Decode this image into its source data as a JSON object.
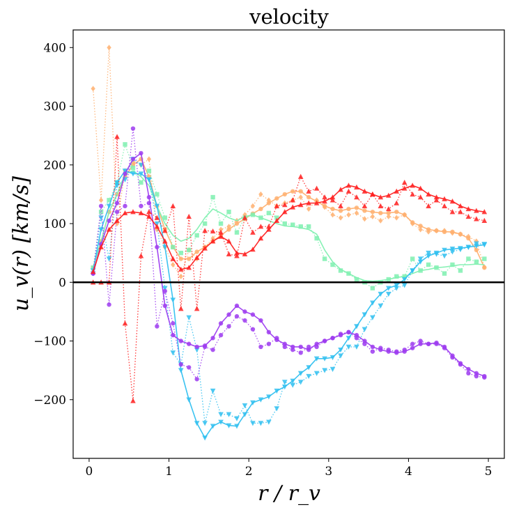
{
  "chart_data": {
    "type": "line",
    "title": "velocity",
    "xlabel": "r / r_v",
    "ylabel": "u_v(r) [km/s]",
    "xlim": [
      -0.2,
      5.2
    ],
    "ylim": [
      -300,
      430
    ],
    "xticks": [
      0,
      1,
      2,
      3,
      4,
      5
    ],
    "yticks": [
      -200,
      -100,
      0,
      100,
      200,
      300,
      400
    ],
    "xtick_labels": [
      "0",
      "1",
      "2",
      "3",
      "4",
      "5"
    ],
    "ytick_labels": [
      "−200",
      "−100",
      "0",
      "100",
      "200",
      "300",
      "400"
    ],
    "zero_line": 0,
    "grid": false,
    "series": [
      {
        "name": "orange solid",
        "color": "#ffb070",
        "marker": "circle",
        "linestyle": "solid",
        "x": [
          0.05,
          0.15,
          0.25,
          0.35,
          0.45,
          0.55,
          0.65,
          0.75,
          0.85,
          0.95,
          1.05,
          1.15,
          1.25,
          1.35,
          1.45,
          1.55,
          1.65,
          1.75,
          1.85,
          1.95,
          2.05,
          2.15,
          2.25,
          2.35,
          2.45,
          2.55,
          2.65,
          2.75,
          2.85,
          2.95,
          3.05,
          3.15,
          3.25,
          3.35,
          3.45,
          3.55,
          3.65,
          3.75,
          3.85,
          3.95,
          4.05,
          4.15,
          4.25,
          4.35,
          4.45,
          4.55,
          4.65,
          4.75,
          4.85,
          4.95
        ],
        "y": [
          25,
          70,
          120,
          150,
          180,
          200,
          210,
          180,
          130,
          90,
          60,
          40,
          40,
          52,
          60,
          70,
          80,
          90,
          100,
          108,
          117,
          125,
          135,
          143,
          150,
          155,
          155,
          145,
          138,
          130,
          125,
          122,
          125,
          127,
          122,
          120,
          118,
          118,
          120,
          115,
          102,
          96,
          90,
          88,
          86,
          86,
          82,
          75,
          55,
          25
        ]
      },
      {
        "name": "orange dotted",
        "color": "#ffb070",
        "marker": "diamond",
        "linestyle": "dotted",
        "x": [
          0.05,
          0.15,
          0.25,
          0.35,
          0.45,
          0.55,
          0.65,
          0.75,
          0.85,
          0.95,
          1.05,
          1.15,
          1.25,
          1.35,
          1.45,
          1.55,
          1.65,
          1.75,
          1.85,
          1.95,
          2.05,
          2.15,
          2.25,
          2.35,
          2.45,
          2.55,
          2.65,
          2.75,
          2.85,
          2.95,
          3.05,
          3.15,
          3.25,
          3.35,
          3.45,
          3.55,
          3.65,
          3.75,
          3.85,
          3.95,
          4.05,
          4.15,
          4.25,
          4.35,
          4.45,
          4.55,
          4.65,
          4.75,
          4.85,
          4.95
        ],
        "y": [
          330,
          140,
          400,
          100,
          190,
          205,
          200,
          210,
          90,
          60,
          30,
          10,
          55,
          40,
          60,
          75,
          90,
          95,
          105,
          115,
          130,
          150,
          140,
          130,
          135,
          140,
          145,
          125,
          140,
          128,
          115,
          110,
          115,
          118,
          108,
          112,
          105,
          112,
          110,
          115,
          100,
          90,
          86,
          88,
          88,
          84,
          82,
          78,
          70,
          26
        ]
      },
      {
        "name": "green dotted",
        "color": "#7ff0b0",
        "marker": "square",
        "linestyle": "dotted",
        "x": [
          0.05,
          0.15,
          0.25,
          0.35,
          0.45,
          0.55,
          0.65,
          0.75,
          0.85,
          0.95,
          1.05,
          1.15,
          1.25,
          1.35,
          1.45,
          1.55,
          1.65,
          1.75,
          1.85,
          1.95,
          2.05,
          2.15,
          2.25,
          2.35,
          2.45,
          2.55,
          2.65,
          2.75,
          2.85,
          2.95,
          3.05,
          3.15,
          3.25,
          3.35,
          3.45,
          3.55,
          3.65,
          3.75,
          3.85,
          3.95,
          4.05,
          4.15,
          4.25,
          4.35,
          4.45,
          4.55,
          4.65,
          4.75,
          4.85,
          4.95
        ],
        "y": [
          25,
          120,
          140,
          170,
          235,
          195,
          170,
          190,
          150,
          110,
          60,
          50,
          55,
          80,
          100,
          145,
          100,
          120,
          85,
          110,
          115,
          110,
          118,
          110,
          100,
          98,
          95,
          95,
          75,
          40,
          30,
          20,
          15,
          5,
          0,
          -10,
          0,
          5,
          10,
          10,
          40,
          20,
          30,
          25,
          15,
          30,
          20,
          40,
          35,
          40
        ]
      },
      {
        "name": "green solid",
        "color": "#7ff0b0",
        "marker": "none",
        "linestyle": "solid",
        "x": [
          0.05,
          0.15,
          0.25,
          0.35,
          0.45,
          0.55,
          0.65,
          0.75,
          0.85,
          0.95,
          1.05,
          1.15,
          1.25,
          1.35,
          1.45,
          1.55,
          1.65,
          1.75,
          1.85,
          1.95,
          2.05,
          2.15,
          2.25,
          2.35,
          2.45,
          2.55,
          2.65,
          2.75,
          2.85,
          2.95,
          3.05,
          3.15,
          3.25,
          3.35,
          3.45,
          3.55,
          3.65,
          3.75,
          3.85,
          3.95,
          4.05,
          4.15,
          4.25,
          4.35,
          4.45,
          4.55,
          4.65,
          4.75,
          4.85,
          4.95
        ],
        "y": [
          25,
          70,
          120,
          150,
          185,
          190,
          180,
          165,
          130,
          100,
          80,
          70,
          75,
          90,
          110,
          125,
          118,
          110,
          105,
          112,
          115,
          110,
          105,
          100,
          96,
          95,
          93,
          90,
          82,
          55,
          35,
          22,
          15,
          8,
          3,
          2,
          3,
          5,
          8,
          10,
          15,
          20,
          22,
          25,
          26,
          28,
          30,
          30,
          31,
          30
        ]
      },
      {
        "name": "cyan solid",
        "color": "#30c0f0",
        "marker": "triangle-down",
        "linestyle": "solid",
        "x": [
          0.05,
          0.15,
          0.25,
          0.35,
          0.45,
          0.55,
          0.65,
          0.75,
          0.85,
          0.95,
          1.05,
          1.15,
          1.25,
          1.35,
          1.45,
          1.55,
          1.65,
          1.75,
          1.85,
          1.95,
          2.05,
          2.15,
          2.25,
          2.35,
          2.45,
          2.55,
          2.65,
          2.75,
          2.85,
          2.95,
          3.05,
          3.15,
          3.25,
          3.35,
          3.45,
          3.55,
          3.65,
          3.75,
          3.85,
          3.95,
          4.05,
          4.15,
          4.25,
          4.35,
          4.45,
          4.55,
          4.65,
          4.75,
          4.85,
          4.95
        ],
        "y": [
          20,
          90,
          130,
          170,
          190,
          185,
          185,
          175,
          130,
          60,
          -30,
          -150,
          -200,
          -240,
          -265,
          -245,
          -238,
          -244,
          -245,
          -225,
          -205,
          -200,
          -195,
          -185,
          -178,
          -168,
          -155,
          -145,
          -130,
          -130,
          -128,
          -115,
          -95,
          -75,
          -55,
          -35,
          -20,
          -10,
          -5,
          5,
          20,
          35,
          45,
          50,
          55,
          57,
          58,
          60,
          62,
          64
        ]
      },
      {
        "name": "cyan dotted",
        "color": "#30c0f0",
        "marker": "triangle-down",
        "linestyle": "dotted",
        "x": [
          0.05,
          0.15,
          0.25,
          0.35,
          0.45,
          0.55,
          0.65,
          0.75,
          0.85,
          0.95,
          1.05,
          1.15,
          1.25,
          1.35,
          1.45,
          1.55,
          1.65,
          1.75,
          1.85,
          1.95,
          2.05,
          2.15,
          2.25,
          2.35,
          2.45,
          2.55,
          2.65,
          2.75,
          2.85,
          2.95,
          3.05,
          3.15,
          3.25,
          3.35,
          3.45,
          3.55,
          3.65,
          3.75,
          3.85,
          3.95,
          4.05,
          4.15,
          4.25,
          4.35,
          4.45,
          4.55,
          4.65,
          4.75,
          4.85,
          4.95
        ],
        "y": [
          15,
          110,
          40,
          165,
          175,
          210,
          200,
          175,
          100,
          -10,
          -120,
          -140,
          -60,
          -115,
          -240,
          -185,
          -225,
          -225,
          -232,
          -210,
          -240,
          -240,
          -238,
          -215,
          -170,
          -175,
          -170,
          -160,
          -155,
          -150,
          -148,
          -125,
          -110,
          -110,
          -80,
          -60,
          -40,
          -20,
          -10,
          -5,
          20,
          40,
          50,
          48,
          45,
          52,
          56,
          60,
          66,
          65
        ]
      },
      {
        "name": "purple solid",
        "color": "#9d3cf0",
        "marker": "circle",
        "linestyle": "solid",
        "x": [
          0.05,
          0.15,
          0.25,
          0.35,
          0.45,
          0.55,
          0.65,
          0.75,
          0.85,
          0.95,
          1.05,
          1.15,
          1.25,
          1.35,
          1.45,
          1.55,
          1.65,
          1.75,
          1.85,
          1.95,
          2.05,
          2.15,
          2.25,
          2.35,
          2.45,
          2.55,
          2.65,
          2.75,
          2.85,
          2.95,
          3.05,
          3.15,
          3.25,
          3.35,
          3.45,
          3.55,
          3.65,
          3.75,
          3.85,
          3.95,
          4.05,
          4.15,
          4.25,
          4.35,
          4.45,
          4.55,
          4.65,
          4.75,
          4.85,
          4.95
        ],
        "y": [
          15,
          65,
          105,
          135,
          185,
          210,
          220,
          145,
          60,
          -40,
          -90,
          -100,
          -105,
          -110,
          -108,
          -95,
          -70,
          -55,
          -40,
          -50,
          -55,
          -65,
          -85,
          -98,
          -105,
          -110,
          -110,
          -115,
          -105,
          -100,
          -95,
          -90,
          -85,
          -90,
          -100,
          -110,
          -115,
          -118,
          -120,
          -118,
          -112,
          -105,
          -105,
          -103,
          -110,
          -125,
          -138,
          -148,
          -155,
          -160
        ]
      },
      {
        "name": "purple dotted",
        "color": "#9d3cf0",
        "marker": "circle",
        "linestyle": "dotted",
        "x": [
          0.05,
          0.15,
          0.25,
          0.35,
          0.45,
          0.55,
          0.65,
          0.75,
          0.85,
          0.95,
          1.05,
          1.15,
          1.25,
          1.35,
          1.45,
          1.55,
          1.65,
          1.75,
          1.85,
          1.95,
          2.05,
          2.15,
          2.25,
          2.35,
          2.45,
          2.55,
          2.65,
          2.75,
          2.85,
          2.95,
          3.05,
          3.15,
          3.25,
          3.35,
          3.45,
          3.55,
          3.65,
          3.75,
          3.85,
          3.95,
          4.05,
          4.15,
          4.25,
          4.35,
          4.45,
          4.55,
          4.65,
          4.75,
          4.85,
          4.95
        ],
        "y": [
          15,
          130,
          -38,
          120,
          130,
          262,
          130,
          135,
          -75,
          -15,
          -70,
          -140,
          -145,
          -165,
          -110,
          -115,
          -90,
          -75,
          -58,
          -65,
          -80,
          -110,
          -105,
          -95,
          -110,
          -115,
          -120,
          -110,
          -110,
          -100,
          -95,
          -88,
          -85,
          -95,
          -105,
          -118,
          -112,
          -115,
          -118,
          -115,
          -105,
          -100,
          -105,
          -105,
          -112,
          -128,
          -140,
          -155,
          -160,
          -162
        ]
      },
      {
        "name": "red solid",
        "color": "#ff2020",
        "marker": "triangle-up",
        "linestyle": "solid",
        "x": [
          0.05,
          0.15,
          0.25,
          0.35,
          0.45,
          0.55,
          0.65,
          0.75,
          0.85,
          0.95,
          1.05,
          1.15,
          1.25,
          1.35,
          1.45,
          1.55,
          1.65,
          1.75,
          1.85,
          1.95,
          2.05,
          2.15,
          2.25,
          2.35,
          2.45,
          2.55,
          2.65,
          2.75,
          2.85,
          2.95,
          3.05,
          3.15,
          3.25,
          3.35,
          3.45,
          3.55,
          3.65,
          3.75,
          3.85,
          3.95,
          4.05,
          4.15,
          4.25,
          4.35,
          4.45,
          4.55,
          4.65,
          4.75,
          4.85,
          4.95
        ],
        "y": [
          18,
          60,
          90,
          105,
          118,
          120,
          118,
          112,
          95,
          70,
          40,
          22,
          25,
          42,
          58,
          70,
          78,
          70,
          50,
          48,
          56,
          75,
          90,
          105,
          120,
          128,
          132,
          135,
          135,
          138,
          145,
          158,
          165,
          162,
          155,
          150,
          145,
          148,
          155,
          160,
          165,
          160,
          150,
          145,
          142,
          138,
          130,
          125,
          122,
          120
        ]
      },
      {
        "name": "red dotted",
        "color": "#ff2020",
        "marker": "triangle-up",
        "linestyle": "dotted",
        "x": [
          0.05,
          0.15,
          0.25,
          0.35,
          0.45,
          0.55,
          0.65,
          0.75,
          0.85,
          0.95,
          1.05,
          1.15,
          1.25,
          1.35,
          1.45,
          1.55,
          1.65,
          1.75,
          1.85,
          1.95,
          2.05,
          2.15,
          2.25,
          2.35,
          2.45,
          2.55,
          2.65,
          2.75,
          2.85,
          2.95,
          3.05,
          3.15,
          3.25,
          3.35,
          3.45,
          3.55,
          3.65,
          3.75,
          3.85,
          3.95,
          4.05,
          4.15,
          4.25,
          4.35,
          4.45,
          4.55,
          4.65,
          4.75,
          4.85,
          4.95
        ],
        "y": [
          0,
          0,
          0,
          248,
          -70,
          -202,
          45,
          120,
          110,
          88,
          130,
          -45,
          112,
          -45,
          88,
          87,
          85,
          48,
          45,
          110,
          85,
          95,
          95,
          130,
          132,
          140,
          180,
          155,
          160,
          145,
          140,
          130,
          155,
          145,
          130,
          150,
          130,
          125,
          135,
          170,
          150,
          145,
          130,
          140,
          130,
          120,
          120,
          112,
          108,
          105
        ]
      }
    ]
  }
}
